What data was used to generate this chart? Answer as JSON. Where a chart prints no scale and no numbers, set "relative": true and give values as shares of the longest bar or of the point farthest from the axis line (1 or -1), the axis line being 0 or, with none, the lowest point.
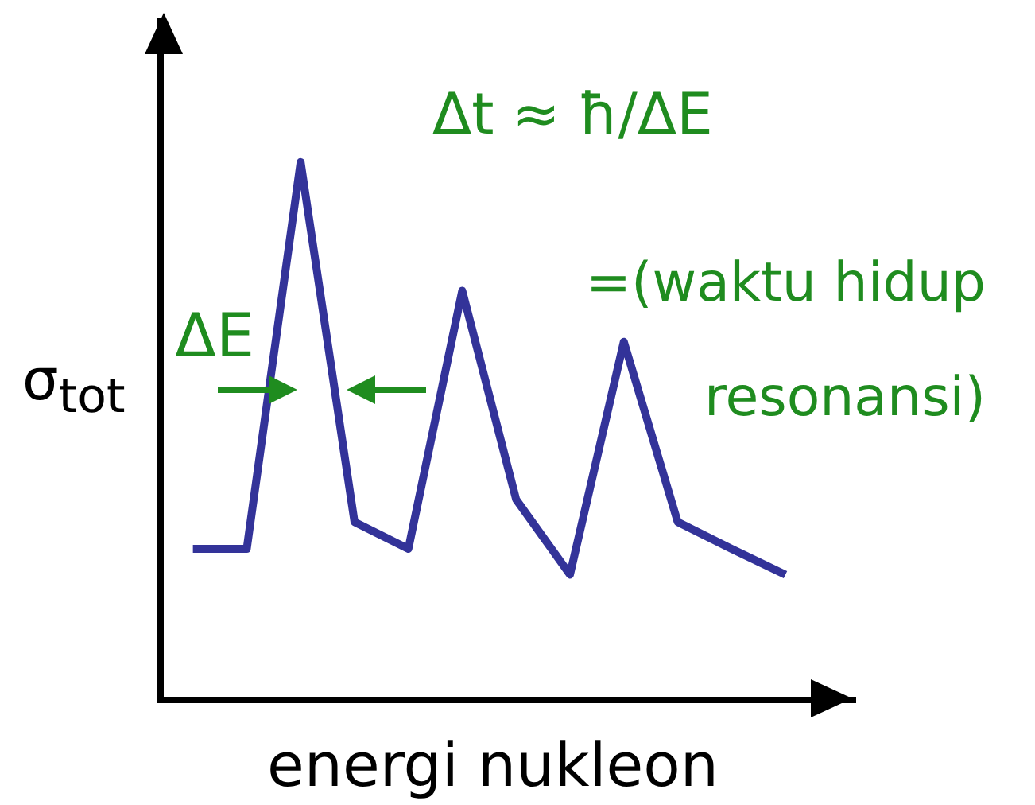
{
  "chart_data": {
    "type": "line",
    "relative": true,
    "xlabel": "energi nukleon",
    "ylabel": "σ$_{tot}$",
    "categories": [
      null,
      null,
      null,
      null,
      null,
      null,
      null,
      null,
      null,
      null,
      null,
      null
    ],
    "series": [
      {
        "color": "#333399",
        "values": [
          0.281,
          0.281,
          1,
          0.331,
          0.281,
          0.761,
          0.373,
          0.233,
          0.666,
          0.331,
          0.281,
          0.233
        ]
      }
    ],
    "annotations": [
      "Δt ≈ ħ/ΔE",
      "=(waktu hidup resonansi)",
      "ΔE"
    ],
    "marker": "none",
    "grid": false,
    "legend": false,
    "tick_labels": false
  }
}
